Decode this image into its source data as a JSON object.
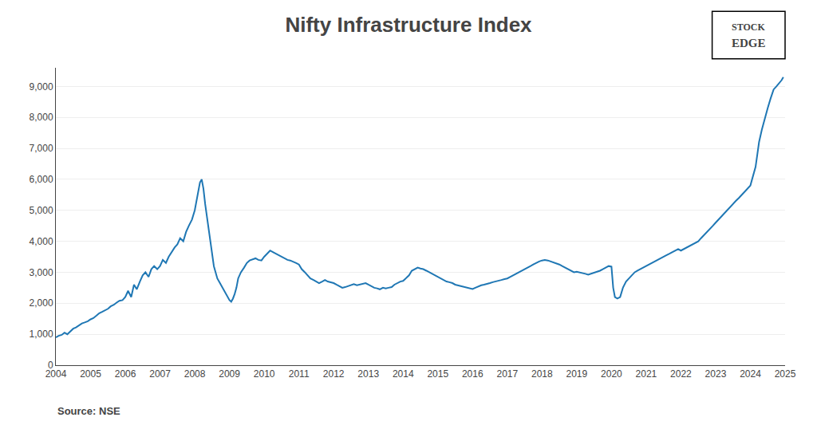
{
  "chart_data": {
    "type": "line",
    "title": "Nifty Infrastructure Index",
    "annotations": [
      "Source: NSE",
      "STOCK",
      "EDGE"
    ],
    "x": [
      2004.0,
      2004.08,
      2004.17,
      2004.25,
      2004.33,
      2004.42,
      2004.5,
      2004.58,
      2004.67,
      2004.75,
      2004.83,
      2004.92,
      2005.0,
      2005.08,
      2005.17,
      2005.25,
      2005.33,
      2005.42,
      2005.5,
      2005.58,
      2005.67,
      2005.75,
      2005.83,
      2005.92,
      2006.0,
      2006.08,
      2006.17,
      2006.25,
      2006.33,
      2006.42,
      2006.5,
      2006.58,
      2006.67,
      2006.75,
      2006.83,
      2006.92,
      2007.0,
      2007.08,
      2007.17,
      2007.25,
      2007.33,
      2007.42,
      2007.5,
      2007.58,
      2007.67,
      2007.75,
      2007.83,
      2007.92,
      2008.0,
      2008.05,
      2008.1,
      2008.15,
      2008.2,
      2008.25,
      2008.3,
      2008.35,
      2008.4,
      2008.45,
      2008.5,
      2008.55,
      2008.6,
      2008.65,
      2008.7,
      2008.75,
      2008.8,
      2008.85,
      2008.9,
      2008.95,
      2009.0,
      2009.05,
      2009.1,
      2009.15,
      2009.2,
      2009.25,
      2009.33,
      2009.42,
      2009.5,
      2009.58,
      2009.67,
      2009.75,
      2009.83,
      2009.92,
      2010.0,
      2010.08,
      2010.17,
      2010.25,
      2010.33,
      2010.42,
      2010.5,
      2010.58,
      2010.67,
      2010.75,
      2010.83,
      2010.92,
      2011.0,
      2011.08,
      2011.17,
      2011.25,
      2011.33,
      2011.42,
      2011.5,
      2011.58,
      2011.67,
      2011.75,
      2011.83,
      2011.92,
      2012.0,
      2012.08,
      2012.17,
      2012.25,
      2012.33,
      2012.42,
      2012.5,
      2012.58,
      2012.67,
      2012.75,
      2012.83,
      2012.92,
      2013.0,
      2013.08,
      2013.17,
      2013.25,
      2013.33,
      2013.42,
      2013.5,
      2013.58,
      2013.67,
      2013.75,
      2013.83,
      2013.92,
      2014.0,
      2014.08,
      2014.17,
      2014.25,
      2014.33,
      2014.42,
      2014.5,
      2014.58,
      2014.67,
      2014.75,
      2014.83,
      2014.92,
      2015.0,
      2015.08,
      2015.17,
      2015.25,
      2015.33,
      2015.42,
      2015.5,
      2015.58,
      2015.67,
      2015.75,
      2015.83,
      2015.92,
      2016.0,
      2016.08,
      2016.17,
      2016.25,
      2016.33,
      2016.42,
      2016.5,
      2016.58,
      2016.67,
      2016.75,
      2016.83,
      2016.92,
      2017.0,
      2017.08,
      2017.17,
      2017.25,
      2017.33,
      2017.42,
      2017.5,
      2017.58,
      2017.67,
      2017.75,
      2017.83,
      2017.92,
      2018.0,
      2018.08,
      2018.17,
      2018.25,
      2018.33,
      2018.42,
      2018.5,
      2018.58,
      2018.67,
      2018.75,
      2018.83,
      2018.92,
      2019.0,
      2019.08,
      2019.17,
      2019.25,
      2019.33,
      2019.42,
      2019.5,
      2019.58,
      2019.67,
      2019.75,
      2019.83,
      2019.92,
      2020.0,
      2020.05,
      2020.1,
      2020.17,
      2020.25,
      2020.33,
      2020.42,
      2020.5,
      2020.58,
      2020.67,
      2020.75,
      2020.83,
      2020.92,
      2021.0,
      2021.08,
      2021.17,
      2021.25,
      2021.33,
      2021.42,
      2021.5,
      2021.58,
      2021.67,
      2021.75,
      2021.83,
      2021.92,
      2022.0,
      2022.08,
      2022.17,
      2022.25,
      2022.33,
      2022.42,
      2022.5,
      2022.58,
      2022.67,
      2022.75,
      2022.83,
      2022.92,
      2023.0,
      2023.08,
      2023.17,
      2023.25,
      2023.33,
      2023.42,
      2023.5,
      2023.58,
      2023.67,
      2023.75,
      2023.83,
      2023.92,
      2024.0,
      2024.05,
      2024.1,
      2024.15,
      2024.2,
      2024.25,
      2024.33,
      2024.42,
      2024.5,
      2024.58,
      2024.67,
      2024.75,
      2024.83,
      2024.9,
      2024.95
    ],
    "values": [
      900,
      950,
      980,
      1050,
      1000,
      1100,
      1180,
      1220,
      1280,
      1350,
      1380,
      1420,
      1480,
      1520,
      1600,
      1680,
      1720,
      1780,
      1820,
      1900,
      1950,
      2020,
      2080,
      2100,
      2200,
      2400,
      2200,
      2600,
      2450,
      2700,
      2900,
      3000,
      2850,
      3100,
      3200,
      3100,
      3200,
      3400,
      3300,
      3500,
      3650,
      3800,
      3900,
      4100,
      4000,
      4300,
      4500,
      4700,
      5000,
      5300,
      5700,
      5900,
      6000,
      5700,
      5200,
      4800,
      4300,
      3900,
      3500,
      3200,
      3000,
      2800,
      2700,
      2600,
      2500,
      2400,
      2300,
      2200,
      2100,
      2050,
      2150,
      2300,
      2500,
      2800,
      3000,
      3150,
      3300,
      3380,
      3420,
      3450,
      3400,
      3380,
      3500,
      3600,
      3700,
      3650,
      3600,
      3550,
      3500,
      3450,
      3400,
      3380,
      3350,
      3300,
      3250,
      3100,
      3000,
      2900,
      2800,
      2750,
      2700,
      2650,
      2700,
      2750,
      2700,
      2680,
      2650,
      2600,
      2550,
      2500,
      2520,
      2550,
      2580,
      2620,
      2580,
      2600,
      2620,
      2650,
      2600,
      2550,
      2500,
      2480,
      2450,
      2500,
      2480,
      2500,
      2520,
      2600,
      2650,
      2700,
      2720,
      2800,
      2900,
      3050,
      3100,
      3150,
      3120,
      3100,
      3050,
      3000,
      2950,
      2900,
      2850,
      2800,
      2750,
      2700,
      2680,
      2650,
      2600,
      2580,
      2550,
      2520,
      2500,
      2480,
      2460,
      2500,
      2550,
      2580,
      2600,
      2620,
      2650,
      2680,
      2700,
      2720,
      2750,
      2780,
      2800,
      2850,
      2900,
      2950,
      3000,
      3050,
      3100,
      3150,
      3200,
      3250,
      3300,
      3350,
      3380,
      3400,
      3380,
      3350,
      3300,
      3280,
      3250,
      3200,
      3150,
      3100,
      3050,
      3000,
      3020,
      3000,
      2980,
      2950,
      2920,
      2950,
      2980,
      3000,
      3050,
      3100,
      3150,
      3200,
      3180,
      2500,
      2200,
      2150,
      2200,
      2500,
      2700,
      2800,
      2900,
      3000,
      3050,
      3100,
      3150,
      3200,
      3250,
      3300,
      3350,
      3400,
      3450,
      3500,
      3550,
      3600,
      3650,
      3700,
      3750,
      3700,
      3750,
      3800,
      3850,
      3900,
      3950,
      4000,
      4100,
      4200,
      4300,
      4400,
      4500,
      4600,
      4700,
      4800,
      4900,
      5000,
      5100,
      5200,
      5300,
      5400,
      5500,
      5600,
      5700,
      5800,
      6000,
      6200,
      6400,
      6800,
      7200,
      7600,
      8000,
      8300,
      8600,
      8900,
      9000,
      9100,
      9200,
      9300
    ],
    "xlim": [
      2004,
      2025
    ],
    "xticks": [
      2004,
      2005,
      2006,
      2007,
      2008,
      2009,
      2010,
      2011,
      2012,
      2013,
      2014,
      2015,
      2016,
      2017,
      2018,
      2019,
      2020,
      2021,
      2022,
      2023,
      2024,
      2025
    ],
    "ylim": [
      0,
      9600
    ],
    "yticks": [
      0,
      {
        "value": 1000,
        "label": "1,000"
      },
      {
        "value": 2000,
        "label": "2,000"
      },
      {
        "value": 3000,
        "label": "3,000"
      },
      {
        "value": 4000,
        "label": "4,000"
      },
      {
        "value": 5000,
        "label": "5,000"
      },
      {
        "value": 6000,
        "label": "6,000"
      },
      {
        "value": 7000,
        "label": "7,000"
      },
      {
        "value": 8000,
        "label": "8,000"
      },
      {
        "value": 9000,
        "label": "9,000"
      }
    ],
    "grid": true
  }
}
